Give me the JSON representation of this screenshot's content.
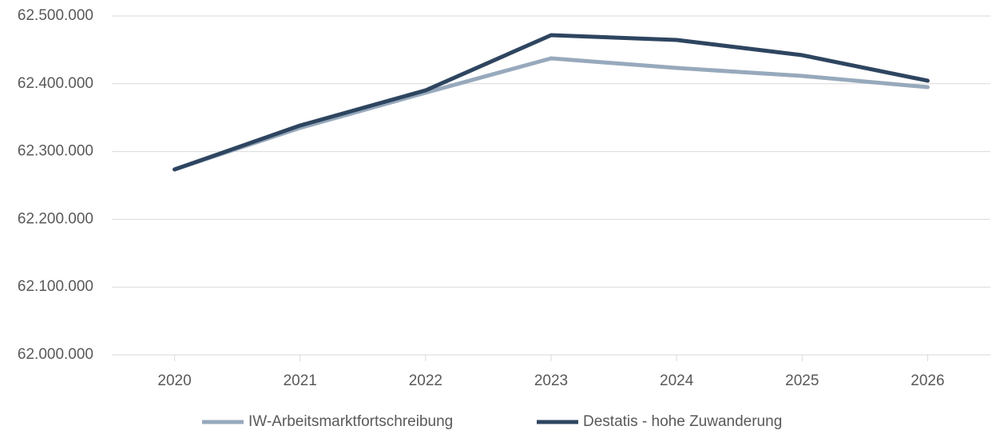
{
  "chart_data": {
    "type": "line",
    "categories": [
      "2020",
      "2021",
      "2022",
      "2023",
      "2024",
      "2025",
      "2026"
    ],
    "series": [
      {
        "name": "IW-Arbeitsmarktfortschreibung",
        "color": "#97a9bc",
        "values": [
          62273600,
          62334900,
          62386800,
          62437500,
          62423300,
          62411600,
          62395000
        ]
      },
      {
        "name": "Destatis - hohe Zuwanderung",
        "color": "#2e4560",
        "values": [
          62273600,
          62338400,
          62390300,
          62471700,
          62464600,
          62442200,
          62404500
        ]
      }
    ],
    "ylim": [
      62000000,
      62500000
    ],
    "yticks": [
      {
        "value": 62000000,
        "label": "62.000.000"
      },
      {
        "value": 62100000,
        "label": "62.100.000"
      },
      {
        "value": 62200000,
        "label": "62.200.000"
      },
      {
        "value": 62300000,
        "label": "62.300.000"
      },
      {
        "value": 62400000,
        "label": "62.400.000"
      },
      {
        "value": 62500000,
        "label": "62.500.000"
      }
    ],
    "grid": true,
    "legend": "bottom"
  }
}
